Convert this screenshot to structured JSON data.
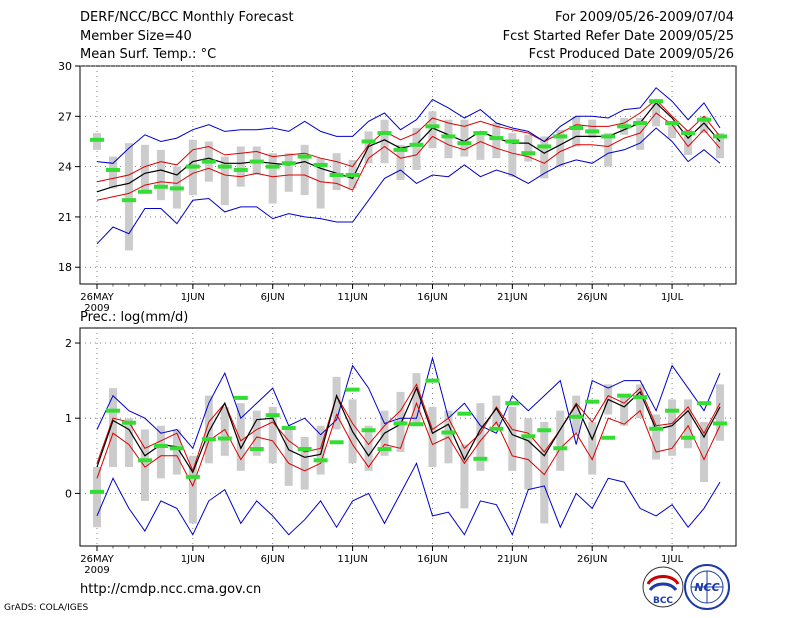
{
  "header": {
    "title": "DERF/NCC/BCC Monthly Forecast",
    "member_size": "Member Size=40",
    "variable": "Mean Surf. Temp.: °C",
    "period": "For 2009/05/26-2009/07/04",
    "start_ref": "Fcst Started Refer Date 2009/05/25",
    "produced": "Fcst Produced Date 2009/05/26"
  },
  "footer": {
    "url": "http://cmdp.ncc.cma.gov.cn",
    "credit": "GrADS: COLA/IGES",
    "logo_bcc_text": "BCC",
    "logo_ncc_text": "NCC"
  },
  "colors": {
    "envelope": "#0000cc",
    "spread": "#dd0000",
    "mean": "#000000",
    "box": "#cccccc",
    "obs": "#33dd33",
    "grid": "#666666"
  },
  "chart_data": [
    {
      "type": "line",
      "title": "Mean Surf. Temp.: °C",
      "xlabel": "",
      "ylabel": "",
      "ylim": [
        17.0,
        30.0
      ],
      "yticks": [
        18,
        21,
        24,
        27,
        30
      ],
      "ytick_labels": [
        "18",
        "21",
        "24",
        "27",
        "30"
      ],
      "x": [
        0,
        1,
        2,
        3,
        4,
        5,
        6,
        7,
        8,
        9,
        10,
        11,
        12,
        13,
        14,
        15,
        16,
        17,
        18,
        19,
        20,
        21,
        22,
        23,
        24,
        25,
        26,
        27,
        28,
        29,
        30,
        31,
        32,
        33,
        34,
        35,
        36,
        37,
        38,
        39
      ],
      "xtick_positions": [
        0,
        6,
        11,
        16,
        21,
        26,
        31,
        36
      ],
      "xtick_labels": [
        "26MAY",
        "1JUN",
        "6JUN",
        "11JUN",
        "16JUN",
        "21JUN",
        "26JUN",
        "1JUL"
      ],
      "year_label": "2009",
      "series": [
        {
          "name": "ensemble max",
          "values": [
            19.4,
            20.4,
            20.0,
            21.5,
            21.5,
            20.6,
            22.0,
            22.1,
            21.3,
            21.6,
            21.6,
            20.9,
            21.2,
            21.0,
            20.9,
            20.7,
            20.7,
            22.0,
            23.3,
            23.8,
            23.0,
            23.5,
            23.4,
            24.1,
            23.4,
            23.8,
            23.5,
            23.0,
            23.6,
            24.1,
            24.4,
            24.2,
            24.8,
            25.0,
            25.4,
            26.3,
            25.5,
            24.3,
            25.0,
            24.2
          ]
        },
        {
          "name": "upper spread",
          "values": [
            23.1,
            23.3,
            23.5,
            24.0,
            24.3,
            24.1,
            25.0,
            25.2,
            24.7,
            24.8,
            24.9,
            24.6,
            24.7,
            24.8,
            24.5,
            24.3,
            24.0,
            25.3,
            26.1,
            25.6,
            26.0,
            26.9,
            26.6,
            26.4,
            26.7,
            26.4,
            26.2,
            26.0,
            25.5,
            26.0,
            26.5,
            26.4,
            26.4,
            26.6,
            27.2,
            28.0,
            27.0,
            26.1,
            27.0,
            25.8
          ]
        },
        {
          "name": "ensemble mean",
          "values": [
            22.5,
            22.8,
            23.0,
            23.6,
            23.8,
            23.5,
            24.3,
            24.5,
            24.2,
            24.2,
            24.3,
            24.2,
            24.1,
            24.3,
            23.9,
            23.6,
            23.3,
            25.2,
            25.6,
            25.1,
            25.3,
            26.3,
            25.9,
            25.5,
            26.1,
            25.7,
            25.4,
            25.4,
            24.8,
            25.3,
            25.8,
            25.8,
            25.8,
            26.2,
            26.6,
            27.8,
            26.9,
            25.7,
            26.6,
            25.5
          ]
        },
        {
          "name": "lower spread",
          "values": [
            22.0,
            22.2,
            22.4,
            22.9,
            23.1,
            23.0,
            23.6,
            23.9,
            23.5,
            23.4,
            23.6,
            23.4,
            23.5,
            23.5,
            23.1,
            23.0,
            22.6,
            24.5,
            25.2,
            24.5,
            24.7,
            25.8,
            25.3,
            25.0,
            25.5,
            25.1,
            24.8,
            24.6,
            24.2,
            24.9,
            25.3,
            25.3,
            25.2,
            25.7,
            26.0,
            27.2,
            26.5,
            25.2,
            26.2,
            25.1
          ]
        },
        {
          "name": "ensemble min",
          "values": [
            24.3,
            24.2,
            25.1,
            25.9,
            25.5,
            25.7,
            26.2,
            26.5,
            26.1,
            26.2,
            26.2,
            26.3,
            26.1,
            26.7,
            26.1,
            25.8,
            25.8,
            26.7,
            27.2,
            26.2,
            26.8,
            28.0,
            27.5,
            26.9,
            27.4,
            26.6,
            26.3,
            26.1,
            25.5,
            26.4,
            27.0,
            27.0,
            26.9,
            27.4,
            27.5,
            28.7,
            27.9,
            26.8,
            27.8,
            26.3
          ]
        }
      ],
      "boxes": [
        [
          25.0,
          26.0
        ],
        [
          22.7,
          24.6
        ],
        [
          19.0,
          25.4
        ],
        [
          22.6,
          25.3
        ],
        [
          22.0,
          25.0
        ],
        [
          21.5,
          24.0
        ],
        [
          22.3,
          25.6
        ],
        [
          23.1,
          25.5
        ],
        [
          21.7,
          24.6
        ],
        [
          22.8,
          25.2
        ],
        [
          23.5,
          25.2
        ],
        [
          21.8,
          24.8
        ],
        [
          22.5,
          24.8
        ],
        [
          22.3,
          25.3
        ],
        [
          21.5,
          24.5
        ],
        [
          22.6,
          24.8
        ],
        [
          22.7,
          24.4
        ],
        [
          24.2,
          26.1
        ],
        [
          24.2,
          26.8
        ],
        [
          23.2,
          25.3
        ],
        [
          23.8,
          26.3
        ],
        [
          25.1,
          27.3
        ],
        [
          24.5,
          26.8
        ],
        [
          24.6,
          26.8
        ],
        [
          24.4,
          26.0
        ],
        [
          24.5,
          26.6
        ],
        [
          23.4,
          26.0
        ],
        [
          24.3,
          25.9
        ],
        [
          23.3,
          25.8
        ],
        [
          24.0,
          26.2
        ],
        [
          25.2,
          27.0
        ],
        [
          25.7,
          26.8
        ],
        [
          24.0,
          26.0
        ],
        [
          25.9,
          26.9
        ],
        [
          25.0,
          26.9
        ],
        [
          26.4,
          27.9
        ],
        [
          25.7,
          26.7
        ],
        [
          24.7,
          26.2
        ],
        [
          26.0,
          27.0
        ],
        [
          24.5,
          26.0
        ]
      ],
      "obs": [
        25.6,
        23.8,
        22.0,
        22.5,
        22.8,
        22.7,
        24.0,
        24.3,
        24.0,
        23.8,
        24.3,
        24.0,
        24.2,
        24.6,
        24.1,
        23.5,
        23.5,
        25.5,
        26.0,
        25.0,
        25.3,
        26.4,
        25.8,
        25.4,
        26.0,
        25.7,
        25.5,
        24.8,
        25.2,
        25.8,
        26.3,
        26.1,
        25.8,
        26.4,
        26.6,
        27.9,
        26.6,
        26.0,
        26.8,
        25.8
      ]
    },
    {
      "type": "line",
      "title": "Prec.: log(mm/d)",
      "xlabel": "",
      "ylabel": "",
      "ylim": [
        -0.7,
        2.2
      ],
      "yticks": [
        0,
        1,
        2
      ],
      "ytick_labels": [
        "0",
        "1",
        "2"
      ],
      "x": [
        0,
        1,
        2,
        3,
        4,
        5,
        6,
        7,
        8,
        9,
        10,
        11,
        12,
        13,
        14,
        15,
        16,
        17,
        18,
        19,
        20,
        21,
        22,
        23,
        24,
        25,
        26,
        27,
        28,
        29,
        30,
        31,
        32,
        33,
        34,
        35,
        36,
        37,
        38,
        39
      ],
      "xtick_positions": [
        0,
        6,
        11,
        16,
        21,
        26,
        31,
        36
      ],
      "xtick_labels": [
        "26MAY",
        "1JUN",
        "6JUN",
        "11JUN",
        "16JUN",
        "21JUN",
        "26JUN",
        "1JUL"
      ],
      "year_label": "2009",
      "series": [
        {
          "name": "ensemble max",
          "values": [
            0.85,
            1.3,
            1.1,
            1.0,
            0.8,
            0.85,
            0.6,
            1.2,
            1.6,
            1.0,
            1.2,
            1.4,
            0.9,
            1.0,
            0.78,
            0.98,
            1.7,
            1.4,
            0.93,
            1.0,
            1.0,
            1.8,
            1.0,
            1.2,
            0.9,
            0.8,
            1.3,
            1.1,
            1.3,
            1.5,
            0.65,
            1.5,
            1.4,
            1.5,
            1.5,
            1.1,
            1.7,
            1.4,
            1.1,
            1.6
          ]
        },
        {
          "name": "upper spread",
          "values": [
            0.4,
            1.0,
            0.95,
            0.6,
            0.7,
            0.8,
            0.3,
            0.95,
            1.2,
            0.7,
            0.85,
            0.95,
            0.7,
            0.55,
            0.6,
            1.3,
            0.93,
            0.65,
            0.9,
            1.1,
            1.45,
            0.85,
            1.0,
            0.6,
            0.8,
            1.15,
            0.85,
            0.8,
            0.55,
            0.85,
            1.2,
            0.95,
            1.3,
            1.2,
            1.4,
            0.9,
            0.93,
            1.15,
            0.8,
            1.2
          ]
        },
        {
          "name": "ensemble mean",
          "values": [
            0.35,
            0.97,
            0.85,
            0.5,
            0.65,
            0.62,
            0.28,
            0.82,
            1.2,
            0.6,
            0.98,
            1.0,
            0.58,
            0.48,
            0.52,
            1.3,
            0.82,
            0.5,
            0.8,
            0.92,
            1.4,
            0.8,
            0.92,
            0.45,
            0.85,
            1.13,
            0.78,
            0.7,
            0.5,
            0.85,
            1.18,
            0.72,
            1.25,
            1.15,
            1.35,
            0.85,
            0.9,
            1.1,
            0.75,
            1.15
          ]
        },
        {
          "name": "lower spread",
          "values": [
            0.2,
            0.8,
            0.65,
            0.35,
            0.5,
            0.5,
            0.1,
            0.7,
            0.85,
            0.45,
            0.75,
            0.7,
            0.4,
            0.3,
            0.4,
            1.05,
            0.65,
            0.35,
            0.65,
            0.6,
            1.2,
            0.65,
            0.75,
            0.4,
            0.7,
            0.95,
            0.5,
            0.45,
            0.25,
            0.6,
            0.8,
            0.45,
            1.0,
            0.92,
            1.1,
            0.55,
            0.6,
            0.9,
            0.45,
            0.9
          ]
        },
        {
          "name": "ensemble min",
          "values": [
            -0.3,
            0.2,
            -0.2,
            -0.5,
            -0.1,
            -0.2,
            -0.55,
            -0.1,
            0.05,
            -0.4,
            -0.1,
            -0.3,
            -0.55,
            -0.35,
            -0.1,
            -0.45,
            -0.1,
            0.0,
            -0.4,
            0.0,
            0.4,
            -0.3,
            -0.25,
            -0.55,
            -0.1,
            -0.15,
            -0.55,
            0.05,
            0.1,
            -0.45,
            0.0,
            -0.2,
            0.2,
            0.15,
            -0.2,
            -0.3,
            -0.15,
            -0.45,
            -0.2,
            0.15
          ]
        }
      ],
      "boxes": [
        [
          -0.45,
          0.35
        ],
        [
          0.35,
          1.4
        ],
        [
          0.35,
          1.0
        ],
        [
          -0.1,
          0.85
        ],
        [
          0.2,
          0.9
        ],
        [
          0.25,
          0.85
        ],
        [
          -0.4,
          0.5
        ],
        [
          0.4,
          1.3
        ],
        [
          0.5,
          1.15
        ],
        [
          0.3,
          1.2
        ],
        [
          0.5,
          1.1
        ],
        [
          0.4,
          1.15
        ],
        [
          0.1,
          0.9
        ],
        [
          0.05,
          0.75
        ],
        [
          0.25,
          0.9
        ],
        [
          0.85,
          1.55
        ],
        [
          0.4,
          1.25
        ],
        [
          0.3,
          0.9
        ],
        [
          0.5,
          1.1
        ],
        [
          0.55,
          1.35
        ],
        [
          0.9,
          1.6
        ],
        [
          0.35,
          1.15
        ],
        [
          0.4,
          1.1
        ],
        [
          -0.2,
          0.65
        ],
        [
          0.3,
          1.2
        ],
        [
          0.9,
          1.3
        ],
        [
          0.3,
          1.15
        ],
        [
          0.05,
          1.0
        ],
        [
          -0.4,
          0.95
        ],
        [
          0.3,
          1.1
        ],
        [
          0.8,
          1.3
        ],
        [
          0.25,
          0.95
        ],
        [
          1.05,
          1.45
        ],
        [
          0.9,
          1.3
        ],
        [
          1.0,
          1.45
        ],
        [
          0.45,
          1.05
        ],
        [
          0.5,
          1.25
        ],
        [
          0.6,
          1.25
        ],
        [
          0.15,
          0.95
        ],
        [
          0.7,
          1.45
        ]
      ],
      "obs": [
        0.02,
        1.1,
        0.94,
        0.44,
        0.63,
        0.6,
        0.22,
        0.72,
        0.73,
        1.27,
        0.59,
        1.04,
        0.87,
        0.59,
        0.44,
        0.68,
        1.38,
        0.84,
        0.59,
        0.93,
        0.92,
        1.5,
        0.81,
        1.06,
        0.46,
        0.86,
        1.2,
        0.76,
        0.84,
        0.6,
        1.02,
        1.22,
        0.74,
        1.3,
        1.28,
        0.86,
        1.1,
        0.74,
        1.2,
        0.93
      ]
    }
  ]
}
